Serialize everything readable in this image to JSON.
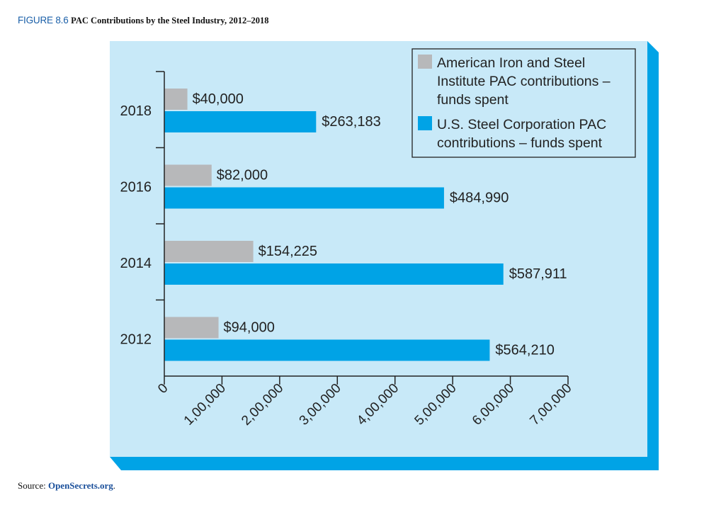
{
  "figure": {
    "number": "FIGURE 8.6",
    "caption": "PAC Contributions by the Steel Industry, 2012–2018"
  },
  "source": {
    "prefix": "Source: ",
    "link": "OpenSecrets.org",
    "suffix": "."
  },
  "colors": {
    "panel": "#c8e9f8",
    "shadow": "#00a3e6",
    "aisi": "#b7b8ba",
    "ussteel": "#00a3e6"
  },
  "chart_data": {
    "type": "bar",
    "orientation": "horizontal",
    "categories": [
      "2018",
      "2016",
      "2014",
      "2012"
    ],
    "series": [
      {
        "name": "American Iron and Steel Institute PAC contributions – funds spent",
        "legend_lines": [
          "American Iron and Steel",
          "Institute PAC contributions –",
          "funds spent"
        ],
        "values": [
          40000,
          82000,
          154225,
          94000
        ],
        "labels": [
          "$40,000",
          "$82,000",
          "$154,225",
          "$94,000"
        ]
      },
      {
        "name": "U.S. Steel Corporation PAC contributions – funds spent",
        "legend_lines": [
          "U.S. Steel Corporation PAC",
          "contributions – funds spent"
        ],
        "values": [
          263183,
          484990,
          587911,
          564210
        ],
        "labels": [
          "$263,183",
          "$484,990",
          "$587,911",
          "$564,210"
        ]
      }
    ],
    "xlim": [
      0,
      700000
    ],
    "xticks": [
      0,
      100000,
      200000,
      300000,
      400000,
      500000,
      600000,
      700000
    ],
    "xtick_labels": [
      "0",
      "1,00,000",
      "2,00,000",
      "3,00,000",
      "4,00,000",
      "5,00,000",
      "6,00,000",
      "7,00,000"
    ],
    "title": "",
    "xlabel": "",
    "ylabel": "",
    "legend_position": "top-right",
    "grid": false
  }
}
